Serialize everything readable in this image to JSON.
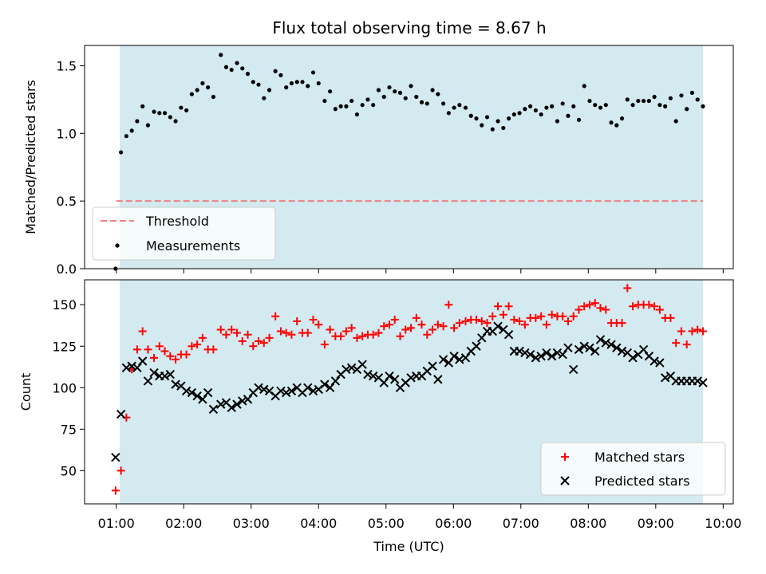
{
  "chart_data": {
    "title": "Flux total observing time = 8.67 h",
    "xlabel": "Time (UTC)",
    "x_unit": "hours UTC",
    "xlim": [
      0.53,
      10.15
    ],
    "xticks": [
      {
        "value": 1,
        "label": "01:00"
      },
      {
        "value": 2,
        "label": "02:00"
      },
      {
        "value": 3,
        "label": "03:00"
      },
      {
        "value": 4,
        "label": "04:00"
      },
      {
        "value": 5,
        "label": "05:00"
      },
      {
        "value": 6,
        "label": "06:00"
      },
      {
        "value": 7,
        "label": "07:00"
      },
      {
        "value": 8,
        "label": "08:00"
      },
      {
        "value": 9,
        "label": "09:00"
      },
      {
        "value": 10,
        "label": "10:00"
      }
    ],
    "observing_span": [
      1.05,
      9.7
    ],
    "span_color": "#d3eaf0",
    "panels": [
      {
        "type": "scatter",
        "ylabel": "Matched/Predicted stars",
        "ylim": [
          0,
          1.65
        ],
        "yticks": [
          {
            "value": 0,
            "label": "0.0"
          },
          {
            "value": 0.5,
            "label": "0.5"
          },
          {
            "value": 1.0,
            "label": "1.0"
          },
          {
            "value": 1.5,
            "label": "1.5"
          }
        ],
        "threshold": {
          "value": 0.5,
          "x_range": [
            1.0,
            9.7
          ],
          "color": "#f08080",
          "label": "Threshold"
        },
        "legend": {
          "placement": "lower-left",
          "entries": [
            "Threshold",
            "Measurements"
          ]
        },
        "series": [
          {
            "name": "Measurements",
            "marker": "dot",
            "color": "#000000",
            "x": [
              0.99,
              1.07,
              1.15,
              1.23,
              1.31,
              1.39,
              1.47,
              1.56,
              1.64,
              1.72,
              1.8,
              1.88,
              1.96,
              2.04,
              2.12,
              2.2,
              2.28,
              2.36,
              2.44,
              2.55,
              2.63,
              2.71,
              2.79,
              2.87,
              2.95,
              3.03,
              3.11,
              3.19,
              3.27,
              3.36,
              3.44,
              3.52,
              3.6,
              3.68,
              3.76,
              3.84,
              3.92,
              4.0,
              4.09,
              4.17,
              4.25,
              4.33,
              4.41,
              4.49,
              4.57,
              4.65,
              4.73,
              4.81,
              4.89,
              4.97,
              5.05,
              5.13,
              5.21,
              5.29,
              5.37,
              5.45,
              5.53,
              5.61,
              5.69,
              5.77,
              5.85,
              5.93,
              6.01,
              6.09,
              6.18,
              6.26,
              6.34,
              6.42,
              6.5,
              6.58,
              6.66,
              6.74,
              6.82,
              6.9,
              6.98,
              7.06,
              7.14,
              7.22,
              7.3,
              7.38,
              7.46,
              7.54,
              7.62,
              7.7,
              7.78,
              7.86,
              7.94,
              8.02,
              8.1,
              8.18,
              8.26,
              8.34,
              8.42,
              8.5,
              8.58,
              8.66,
              8.74,
              8.82,
              8.9,
              8.98,
              9.06,
              9.14,
              9.22,
              9.3,
              9.38,
              9.46,
              9.54,
              9.62,
              9.7
            ],
            "y": [
              0.0,
              0.86,
              0.98,
              1.02,
              1.09,
              1.2,
              1.06,
              1.16,
              1.15,
              1.15,
              1.12,
              1.09,
              1.19,
              1.17,
              1.29,
              1.32,
              1.37,
              1.34,
              1.27,
              1.58,
              1.49,
              1.47,
              1.52,
              1.48,
              1.44,
              1.38,
              1.36,
              1.26,
              1.32,
              1.46,
              1.43,
              1.34,
              1.37,
              1.38,
              1.38,
              1.35,
              1.45,
              1.37,
              1.24,
              1.31,
              1.18,
              1.2,
              1.2,
              1.24,
              1.14,
              1.21,
              1.25,
              1.21,
              1.32,
              1.27,
              1.34,
              1.31,
              1.3,
              1.26,
              1.35,
              1.27,
              1.23,
              1.22,
              1.32,
              1.29,
              1.22,
              1.15,
              1.19,
              1.21,
              1.19,
              1.13,
              1.11,
              1.06,
              1.12,
              1.03,
              1.09,
              1.04,
              1.11,
              1.14,
              1.15,
              1.18,
              1.2,
              1.17,
              1.14,
              1.19,
              1.2,
              1.09,
              1.22,
              1.13,
              1.2,
              1.1,
              1.35,
              1.24,
              1.21,
              1.19,
              1.21,
              1.08,
              1.06,
              1.11,
              1.25,
              1.21,
              1.24,
              1.24,
              1.24,
              1.27,
              1.21,
              1.2,
              1.26,
              1.09,
              1.28,
              1.18,
              1.3,
              1.25,
              1.2
            ]
          }
        ]
      },
      {
        "type": "scatter",
        "ylabel": "Count",
        "ylim": [
          30,
          165
        ],
        "yticks": [
          {
            "value": 50,
            "label": "50"
          },
          {
            "value": 75,
            "label": "75"
          },
          {
            "value": 100,
            "label": "100"
          },
          {
            "value": 125,
            "label": "125"
          },
          {
            "value": 150,
            "label": "150"
          }
        ],
        "legend": {
          "placement": "lower-right",
          "entries": [
            "Matched stars",
            "Predicted stars"
          ]
        },
        "series": [
          {
            "name": "Matched stars",
            "marker": "plus",
            "color": "#ff0000",
            "x": [
              0.99,
              1.07,
              1.15,
              1.23,
              1.31,
              1.39,
              1.47,
              1.56,
              1.64,
              1.72,
              1.8,
              1.88,
              1.96,
              2.04,
              2.12,
              2.2,
              2.28,
              2.36,
              2.44,
              2.55,
              2.63,
              2.71,
              2.79,
              2.87,
              2.95,
              3.03,
              3.11,
              3.19,
              3.27,
              3.36,
              3.44,
              3.52,
              3.6,
              3.68,
              3.76,
              3.84,
              3.92,
              4.0,
              4.09,
              4.17,
              4.25,
              4.33,
              4.41,
              4.49,
              4.57,
              4.65,
              4.73,
              4.81,
              4.89,
              4.97,
              5.05,
              5.13,
              5.21,
              5.29,
              5.37,
              5.45,
              5.53,
              5.61,
              5.69,
              5.77,
              5.85,
              5.93,
              6.01,
              6.09,
              6.18,
              6.26,
              6.34,
              6.42,
              6.5,
              6.58,
              6.66,
              6.74,
              6.82,
              6.9,
              6.98,
              7.06,
              7.14,
              7.22,
              7.3,
              7.38,
              7.46,
              7.54,
              7.62,
              7.7,
              7.78,
              7.86,
              7.94,
              8.02,
              8.1,
              8.18,
              8.26,
              8.34,
              8.42,
              8.5,
              8.58,
              8.66,
              8.74,
              8.82,
              8.9,
              8.98,
              9.06,
              9.14,
              9.22,
              9.3,
              9.38,
              9.46,
              9.54,
              9.62,
              9.7
            ],
            "y": [
              38,
              50,
              82,
              111,
              123,
              134,
              123,
              118,
              125,
              122,
              119,
              117,
              120,
              120,
              125,
              126,
              130,
              123,
              123,
              135,
              132,
              135,
              133,
              128,
              132,
              125,
              128,
              127,
              130,
              143,
              134,
              133,
              132,
              140,
              133,
              133,
              141,
              138,
              126,
              135,
              131,
              131,
              134,
              136,
              130,
              131,
              132,
              132,
              133,
              137,
              138,
              141,
              131,
              135,
              136,
              142,
              138,
              132,
              135,
              138,
              137,
              150,
              136,
              139,
              140,
              141,
              141,
              140,
              139,
              143,
              149,
              144,
              149,
              141,
              140,
              138,
              142,
              142,
              143,
              138,
              144,
              143,
              143,
              140,
              143,
              147,
              149,
              150,
              151,
              148,
              147,
              139,
              139,
              139,
              160,
              149,
              150,
              150,
              150,
              149,
              147,
              142,
              142,
              127,
              134,
              126,
              134,
              135,
              134
            ]
          },
          {
            "name": "Predicted stars",
            "marker": "x",
            "color": "#000000",
            "x": [
              0.99,
              1.07,
              1.15,
              1.23,
              1.31,
              1.39,
              1.47,
              1.56,
              1.64,
              1.72,
              1.8,
              1.88,
              1.96,
              2.04,
              2.12,
              2.2,
              2.28,
              2.36,
              2.44,
              2.55,
              2.63,
              2.71,
              2.79,
              2.87,
              2.95,
              3.03,
              3.11,
              3.19,
              3.27,
              3.36,
              3.44,
              3.52,
              3.6,
              3.68,
              3.76,
              3.84,
              3.92,
              4.0,
              4.09,
              4.17,
              4.25,
              4.33,
              4.41,
              4.49,
              4.57,
              4.65,
              4.73,
              4.81,
              4.89,
              4.97,
              5.05,
              5.13,
              5.21,
              5.29,
              5.37,
              5.45,
              5.53,
              5.61,
              5.69,
              5.77,
              5.85,
              5.93,
              6.01,
              6.09,
              6.18,
              6.26,
              6.34,
              6.42,
              6.5,
              6.58,
              6.66,
              6.74,
              6.82,
              6.9,
              6.98,
              7.06,
              7.14,
              7.22,
              7.3,
              7.38,
              7.46,
              7.54,
              7.62,
              7.7,
              7.78,
              7.86,
              7.94,
              8.02,
              8.1,
              8.18,
              8.26,
              8.34,
              8.42,
              8.5,
              8.58,
              8.66,
              8.74,
              8.82,
              8.9,
              8.98,
              9.06,
              9.14,
              9.22,
              9.3,
              9.38,
              9.46,
              9.54,
              9.62,
              9.7
            ],
            "y": [
              58,
              84,
              112,
              113,
              112,
              116,
              104,
              109,
              107,
              107,
              108,
              102,
              101,
              98,
              97,
              95,
              93,
              97,
              87,
              90,
              91,
              88,
              90,
              92,
              93,
              97,
              100,
              99,
              98,
              95,
              98,
              97,
              98,
              100,
              97,
              100,
              98,
              99,
              102,
              100,
              104,
              108,
              111,
              112,
              111,
              114,
              108,
              107,
              106,
              103,
              107,
              105,
              100,
              103,
              106,
              107,
              107,
              110,
              113,
              105,
              117,
              115,
              119,
              117,
              118,
              122,
              125,
              130,
              134,
              134,
              137,
              135,
              132,
              122,
              122,
              121,
              120,
              118,
              119,
              121,
              119,
              121,
              120,
              124,
              111,
              123,
              125,
              124,
              122,
              129,
              127,
              126,
              124,
              122,
              121,
              118,
              120,
              123,
              119,
              116,
              115,
              106,
              107,
              104,
              104,
              104,
              104,
              104,
              103
            ]
          }
        ]
      }
    ]
  }
}
